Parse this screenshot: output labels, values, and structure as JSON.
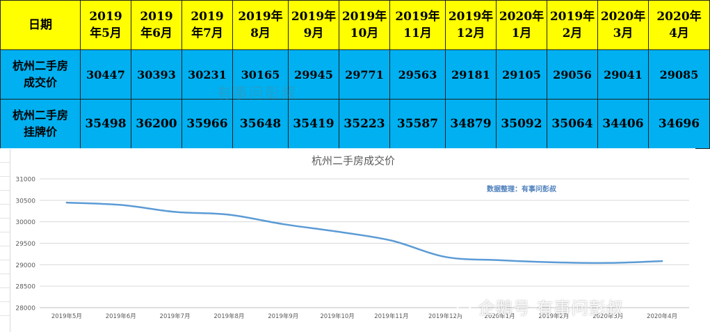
{
  "table": {
    "corner": "日期",
    "columns": [
      "2019\n年5月",
      "2019\n年6月",
      "2019\n年7月",
      "2019年\n8月",
      "2019年\n9月",
      "2019年\n10月",
      "2019年\n11月",
      "2019年\n12月",
      "2020年\n1月",
      "2019年\n2月",
      "2020年\n3月",
      "2020年\n4月"
    ],
    "rows": [
      {
        "label": "杭州二手房\n成交价",
        "values": [
          "30447",
          "30393",
          "30231",
          "30165",
          "29945",
          "29771",
          "29563",
          "29181",
          "29105",
          "29056",
          "29041",
          "29085"
        ]
      },
      {
        "label": "杭州二手房\n挂牌价",
        "values": [
          "35498",
          "36200",
          "35966",
          "35648",
          "35419",
          "35223",
          "35587",
          "34879",
          "35092",
          "35064",
          "34406",
          "34696"
        ]
      }
    ]
  },
  "chart_data": {
    "type": "line",
    "title": "杭州二手房成交价",
    "annotation": "数据整理：有事问彭叔",
    "categories": [
      "2019年5月",
      "2019年6月",
      "2019年7月",
      "2019年8月",
      "2019年9月",
      "2019年10月",
      "2019年11月",
      "2019年12月",
      "2020年1月",
      "2019年2月",
      "2020年3月",
      "2020年4月"
    ],
    "series": [
      {
        "values": [
          30447,
          30393,
          30231,
          30165,
          29945,
          29771,
          29563,
          29181,
          29105,
          29056,
          29041,
          29085
        ]
      }
    ],
    "yticks": [
      "31000",
      "30500",
      "30000",
      "29500",
      "29000",
      "28500",
      "28000"
    ],
    "ylim": [
      28000,
      31000
    ],
    "grid": true,
    "legend": "none",
    "line_color": "#5b9bd5"
  },
  "watermarks": {
    "top": "有事问彭叔",
    "bottom": "企鹅号 有事问彭叔"
  },
  "colors": {
    "header_bg": "#ffff00",
    "row_bg": "#00b0f0"
  }
}
